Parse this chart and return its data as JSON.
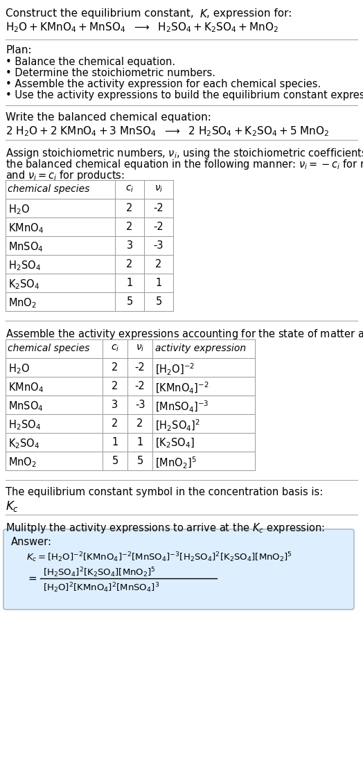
{
  "bg_color": "#ffffff",
  "text_color": "#000000",
  "plan_items": [
    "• Balance the chemical equation.",
    "• Determine the stoichiometric numbers.",
    "• Assemble the activity expression for each chemical species.",
    "• Use the activity expressions to build the equilibrium constant expression."
  ],
  "table1_species_math": [
    "$\\mathrm{H_2O}$",
    "$\\mathrm{KMnO_4}$",
    "$\\mathrm{MnSO_4}$",
    "$\\mathrm{H_2SO_4}$",
    "$\\mathrm{K_2SO_4}$",
    "$\\mathrm{MnO_2}$"
  ],
  "table1_ci": [
    "2",
    "2",
    "3",
    "2",
    "1",
    "5"
  ],
  "table1_ni": [
    "-2",
    "-2",
    "-3",
    "2",
    "1",
    "5"
  ],
  "activity_exprs": [
    "$[\\mathrm{H_2O}]^{-2}$",
    "$[\\mathrm{KMnO_4}]^{-2}$",
    "$[\\mathrm{MnSO_4}]^{-3}$",
    "$[\\mathrm{H_2SO_4}]^{2}$",
    "$[\\mathrm{K_2SO_4}]$",
    "$[\\mathrm{MnO_2}]^{5}$"
  ],
  "answer_box_color": "#ddeeff",
  "answer_box_border": "#aabbcc"
}
